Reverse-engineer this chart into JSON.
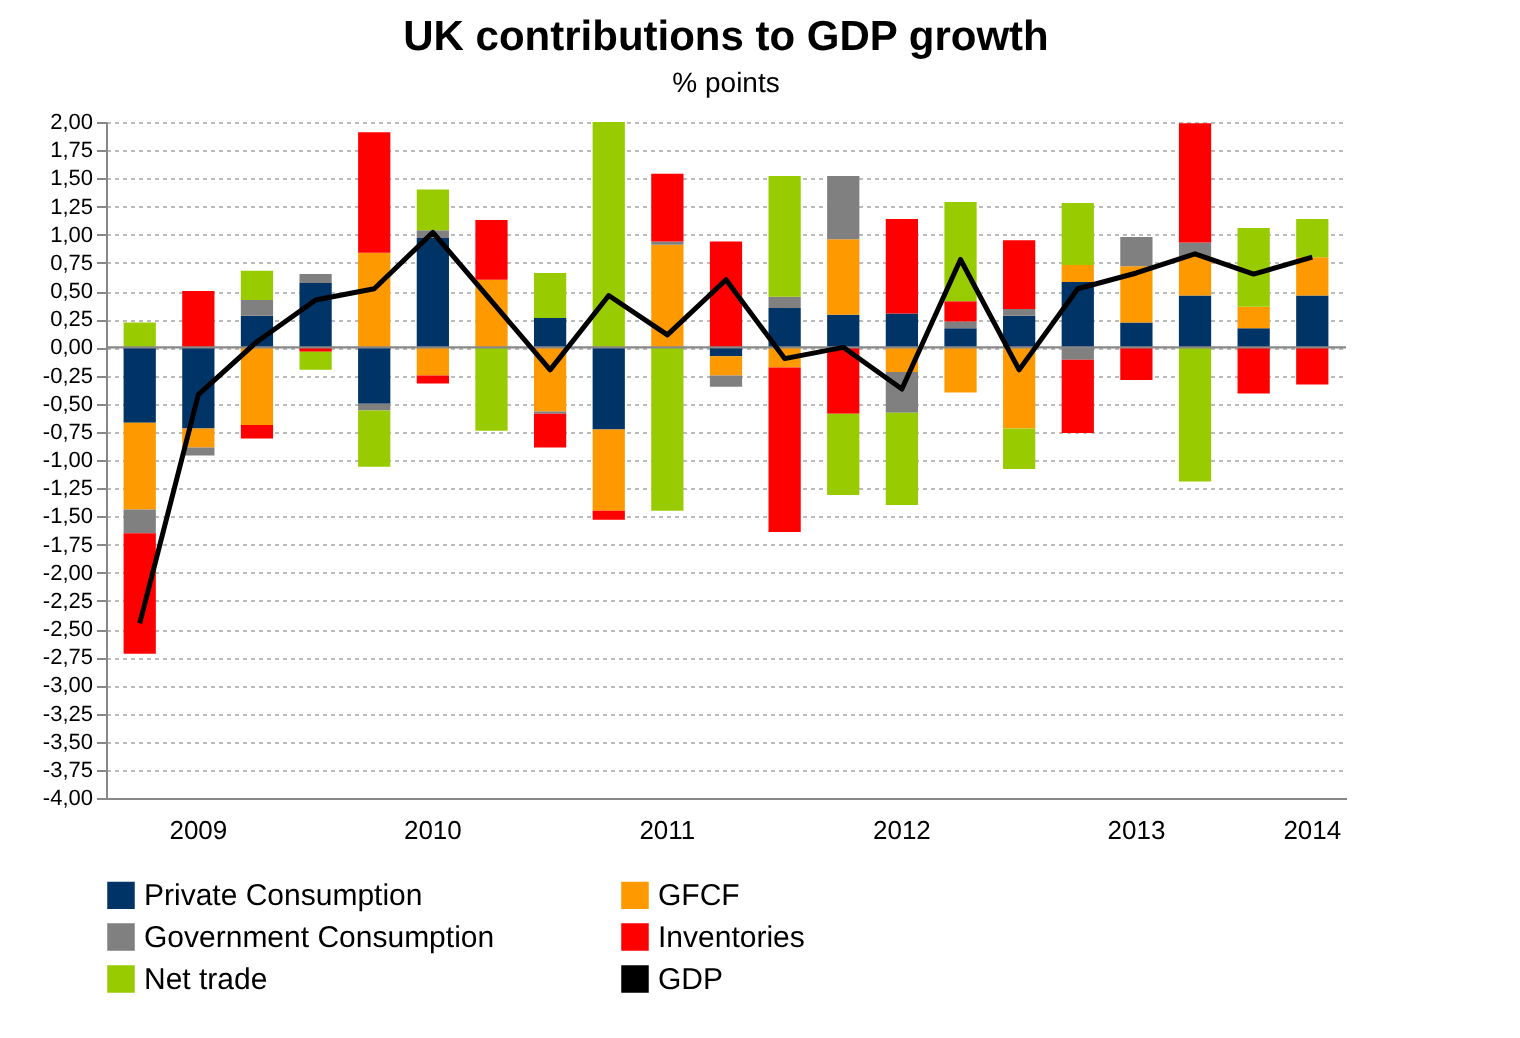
{
  "chart_data": {
    "type": "bar",
    "title": "UK contributions to GDP growth",
    "subtitle": "% points",
    "categories": [
      null,
      "2009",
      null,
      null,
      null,
      "2010",
      null,
      null,
      null,
      "2011",
      null,
      null,
      null,
      "2012",
      null,
      null,
      null,
      "2013",
      null,
      null,
      "2014"
    ],
    "stacked": true,
    "series": [
      {
        "name": "Private Consumption",
        "color": "#003366",
        "values": [
          -0.67,
          -0.72,
          0.28,
          0.57,
          -0.5,
          0.97,
          null,
          0.26,
          -0.73,
          null,
          -0.08,
          0.35,
          0.29,
          0.3,
          0.17,
          0.28,
          0.58,
          0.22,
          0.46,
          0.17,
          0.46
        ]
      },
      {
        "name": "GFCF",
        "color": "#ff9900",
        "values": [
          -0.77,
          -0.17,
          -0.69,
          null,
          0.84,
          -0.25,
          0.6,
          -0.57,
          -0.72,
          0.91,
          -0.17,
          -0.18,
          0.67,
          -0.22,
          -0.4,
          -0.72,
          0.15,
          0.5,
          0.35,
          0.19,
          0.34
        ]
      },
      {
        "name": "Government Consumption",
        "color": "#808080",
        "values": [
          -0.21,
          -0.07,
          0.14,
          0.08,
          -0.06,
          0.07,
          null,
          -0.02,
          null,
          0.03,
          -0.1,
          0.1,
          0.56,
          -0.36,
          0.06,
          0.06,
          -0.11,
          0.26,
          0.12,
          null,
          null
        ]
      },
      {
        "name": "Inventories",
        "color": "#ff0000",
        "values": [
          -1.07,
          0.5,
          -0.12,
          -0.04,
          1.07,
          -0.07,
          0.53,
          -0.3,
          -0.08,
          0.6,
          0.94,
          -1.46,
          -0.59,
          0.84,
          0.18,
          0.61,
          -0.65,
          -0.29,
          1.06,
          -0.41,
          -0.33
        ]
      },
      {
        "name": "Net trade",
        "color": "#99cc00",
        "values": [
          0.22,
          null,
          0.26,
          -0.16,
          -0.5,
          0.36,
          -0.74,
          0.4,
          2.0,
          -1.45,
          null,
          1.07,
          -0.72,
          -0.82,
          0.88,
          -0.36,
          0.55,
          null,
          -1.19,
          0.7,
          0.34
        ]
      },
      {
        "name": "GDP",
        "type": "line",
        "color": "#000000",
        "values": [
          -2.45,
          -0.42,
          0.05,
          0.42,
          0.52,
          1.02,
          0.41,
          -0.2,
          0.46,
          0.11,
          0.6,
          -0.1,
          0.0,
          -0.37,
          0.78,
          -0.2,
          0.52,
          0.66,
          0.83,
          0.65,
          0.8
        ]
      }
    ],
    "ylim": [
      -4,
      2
    ],
    "yticks": [
      {
        "value": -4,
        "label": "-4,00"
      },
      {
        "value": -3.75,
        "label": "-3,75"
      },
      {
        "value": -3.5,
        "label": "-3,50"
      },
      {
        "value": -3.25,
        "label": "-3,25"
      },
      {
        "value": -3,
        "label": "-3,00"
      },
      {
        "value": -2.75,
        "label": "-2,75"
      },
      {
        "value": -2.5,
        "label": "-2,50"
      },
      {
        "value": -2.25,
        "label": "-2,25"
      },
      {
        "value": -2,
        "label": "-2,00"
      },
      {
        "value": -1.75,
        "label": "-1,75"
      },
      {
        "value": -1.5,
        "label": "-1,50"
      },
      {
        "value": -1.25,
        "label": "-1,25"
      },
      {
        "value": -1,
        "label": "-1,00"
      },
      {
        "value": -0.75,
        "label": "-0,75"
      },
      {
        "value": -0.5,
        "label": "-0,50"
      },
      {
        "value": -0.25,
        "label": "-0,25"
      },
      {
        "value": 0,
        "label": "0,00"
      },
      {
        "value": 0.25,
        "label": "0,25"
      },
      {
        "value": 0.5,
        "label": "0,50"
      },
      {
        "value": 0.75,
        "label": "0,75"
      },
      {
        "value": 1,
        "label": "1,00"
      },
      {
        "value": 1.25,
        "label": "1,25"
      },
      {
        "value": 1.5,
        "label": "1,50"
      },
      {
        "value": 1.75,
        "label": "1,75"
      },
      {
        "value": 2,
        "label": "2,00"
      }
    ],
    "ref_lines": [
      {
        "axis": "y",
        "value": 0,
        "color": "#888888"
      }
    ],
    "grid": "y",
    "legend": "bottom",
    "marker": "none",
    "line_style": "solid"
  }
}
